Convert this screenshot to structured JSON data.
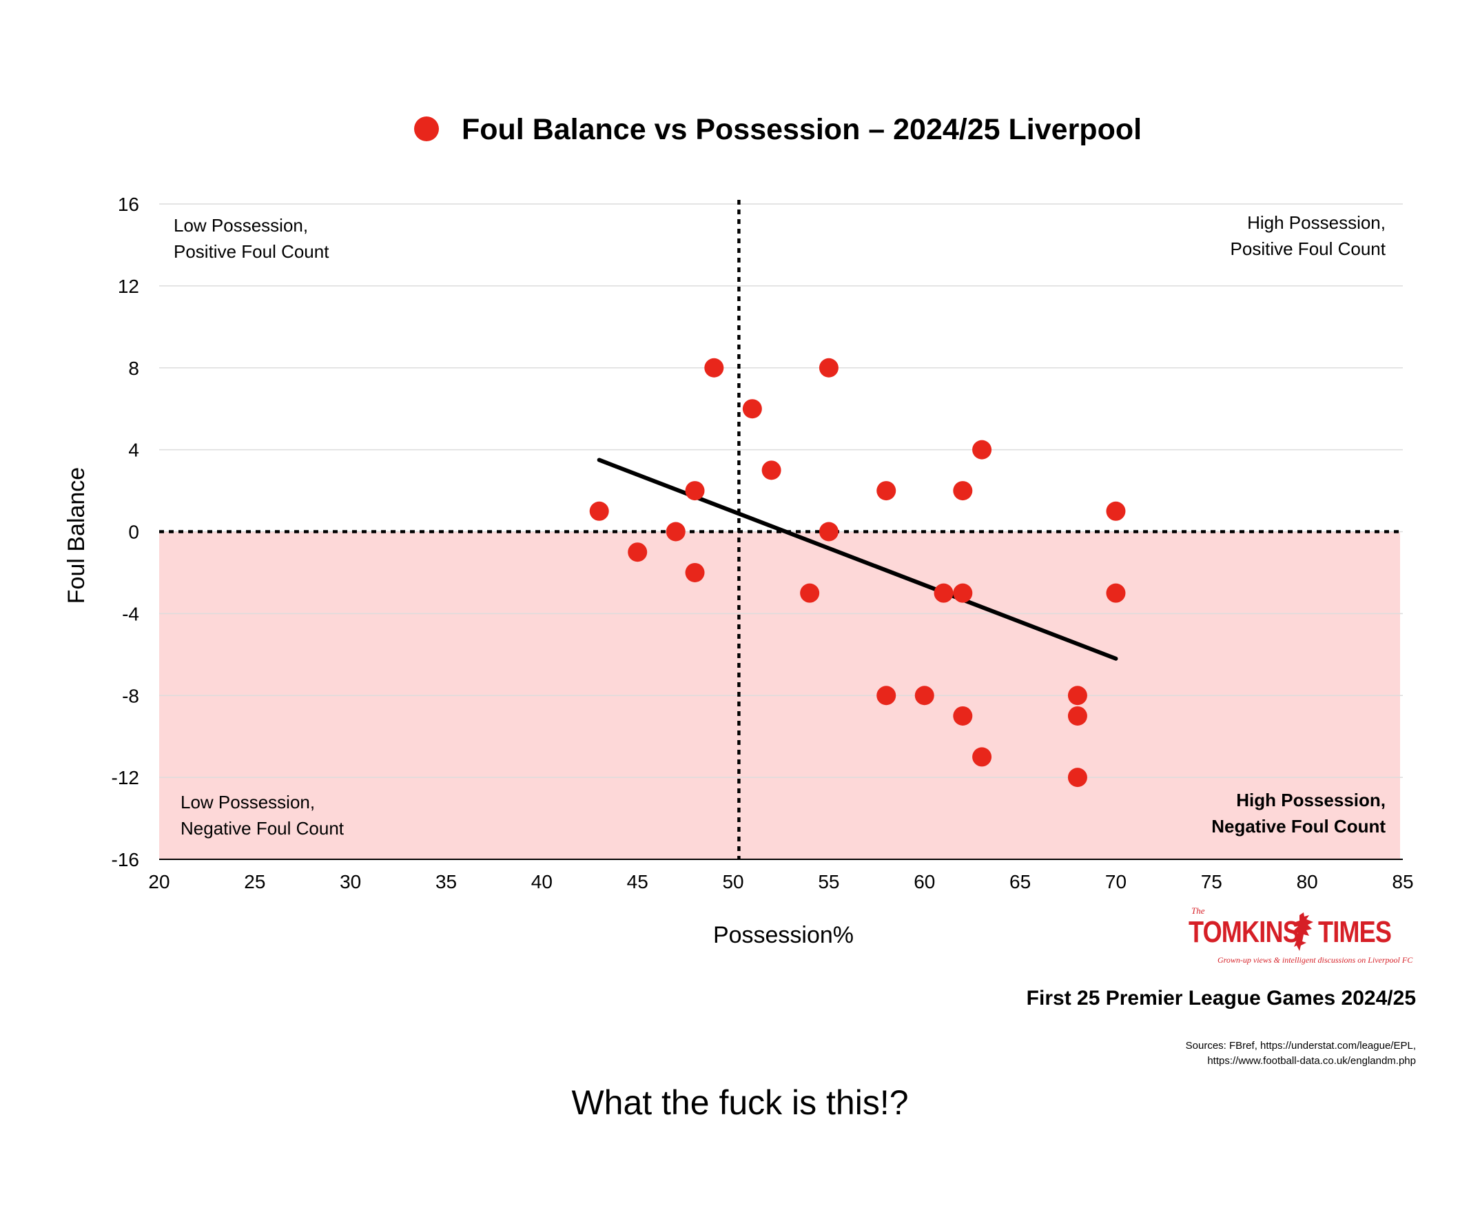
{
  "legend": {
    "label": "Foul Balance vs Possession – 2024/25 Liverpool",
    "marker_color": "#e8261b"
  },
  "chart_data": {
    "type": "scatter",
    "title": "Foul Balance vs Possession – 2024/25 Liverpool",
    "xlabel": "Possession%",
    "ylabel": "Foul Balance",
    "xlim": [
      20,
      85
    ],
    "ylim": [
      -16,
      16
    ],
    "x_ticks": [
      20,
      25,
      30,
      35,
      40,
      45,
      50,
      55,
      60,
      65,
      70,
      75,
      80,
      85
    ],
    "y_ticks": [
      16,
      12,
      8,
      4,
      0,
      -4,
      -8,
      -12,
      -16
    ],
    "grid": "horizontal",
    "legend_position": "top",
    "series": [
      {
        "name": "Foul Balance vs Possession – 2024/25 Liverpool",
        "color": "#e8261b",
        "points": [
          {
            "x": 43,
            "y": 1
          },
          {
            "x": 45,
            "y": -1
          },
          {
            "x": 47,
            "y": 0
          },
          {
            "x": 48,
            "y": 2
          },
          {
            "x": 48,
            "y": -2
          },
          {
            "x": 49,
            "y": 8
          },
          {
            "x": 51,
            "y": 6
          },
          {
            "x": 52,
            "y": 3
          },
          {
            "x": 54,
            "y": -3
          },
          {
            "x": 55,
            "y": 8
          },
          {
            "x": 55,
            "y": 0
          },
          {
            "x": 58,
            "y": 2
          },
          {
            "x": 58,
            "y": -8
          },
          {
            "x": 60,
            "y": -8
          },
          {
            "x": 61,
            "y": -3
          },
          {
            "x": 62,
            "y": 2
          },
          {
            "x": 62,
            "y": -3
          },
          {
            "x": 62,
            "y": -9
          },
          {
            "x": 63,
            "y": 4
          },
          {
            "x": 63,
            "y": -11
          },
          {
            "x": 68,
            "y": -8
          },
          {
            "x": 68,
            "y": -9
          },
          {
            "x": 68,
            "y": -12
          },
          {
            "x": 70,
            "y": 1
          },
          {
            "x": 70,
            "y": -3
          }
        ]
      }
    ],
    "trendline": {
      "x": [
        43,
        70
      ],
      "y": [
        3.5,
        -6.2
      ],
      "color": "#000000"
    },
    "reference_lines": {
      "x": 50.3,
      "y": 0
    },
    "shaded_region": {
      "y_from": -16,
      "y_to": 0,
      "color": "#fdd8d8"
    },
    "annotations": {
      "top_left": [
        "Low Possession,",
        "Positive Foul Count"
      ],
      "top_right": [
        "High Possession,",
        "Positive Foul Count"
      ],
      "bottom_left": [
        "Low Possession,",
        "Negative Foul Count"
      ],
      "bottom_right": [
        "High Possession,",
        "Negative Foul Count"
      ]
    }
  },
  "branding": {
    "the": "The",
    "word_left": "TOMKINS",
    "word_right": "TIMES",
    "tagline": "Grown-up views & intelligent discussions on Liverpool FC",
    "color": "#d61f26",
    "icon": "liverbird-icon"
  },
  "subtitle": "First 25 Premier League Games 2024/25",
  "sources": {
    "line1": "Sources: FBref, https://understat.com/league/EPL,",
    "line2": "https://www.football-data.co.uk/englandm.php"
  },
  "caption": "What the fuck is this!?"
}
